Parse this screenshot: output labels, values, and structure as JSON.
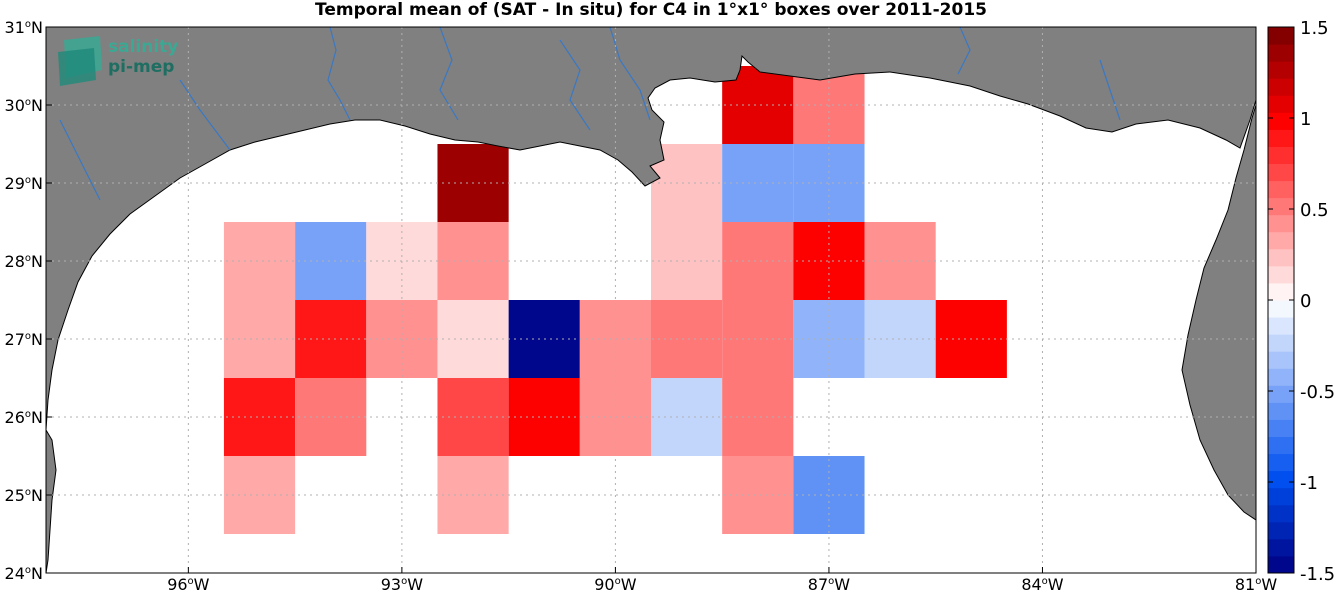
{
  "title": "Temporal mean of (SAT - In situ) for C4 in 1°x1° boxes over 2011-2015",
  "logo": {
    "line1": "salinity",
    "line2": "pi-mep"
  },
  "map": {
    "lon_range": [
      -98,
      -81
    ],
    "lat_range": [
      24,
      31
    ],
    "x_ticks": [
      {
        "lon": -96,
        "deg": "96",
        "hem": "W"
      },
      {
        "lon": -93,
        "deg": "93",
        "hem": "W"
      },
      {
        "lon": -90,
        "deg": "90",
        "hem": "W"
      },
      {
        "lon": -87,
        "deg": "87",
        "hem": "W"
      },
      {
        "lon": -84,
        "deg": "84",
        "hem": "W"
      },
      {
        "lon": -81,
        "deg": "81",
        "hem": "W"
      }
    ],
    "y_ticks": [
      {
        "lat": 24,
        "deg": "24",
        "hem": "N"
      },
      {
        "lat": 25,
        "deg": "25",
        "hem": "N"
      },
      {
        "lat": 26,
        "deg": "26",
        "hem": "N"
      },
      {
        "lat": 27,
        "deg": "27",
        "hem": "N"
      },
      {
        "lat": 28,
        "deg": "28",
        "hem": "N"
      },
      {
        "lat": 29,
        "deg": "29",
        "hem": "N"
      },
      {
        "lat": 30,
        "deg": "30",
        "hem": "N"
      },
      {
        "lat": 31,
        "deg": "31",
        "hem": "N"
      }
    ],
    "land_color": "#808080",
    "river_color": "#3a78c4"
  },
  "colorbar": {
    "range": [
      -1.5,
      1.5
    ],
    "levels": 32,
    "ticks": [
      "1.5",
      "1",
      "0.5",
      "0",
      "-0.5",
      "-1",
      "-1.5"
    ]
  },
  "cells": [
    {
      "lon": -95,
      "lat": 28,
      "v": 0.35
    },
    {
      "lon": -95,
      "lat": 27,
      "v": 0.35
    },
    {
      "lon": -95,
      "lat": 26,
      "v": 0.85
    },
    {
      "lon": -95,
      "lat": 25,
      "v": 0.35
    },
    {
      "lon": -94,
      "lat": 28,
      "v": -0.55
    },
    {
      "lon": -94,
      "lat": 27,
      "v": 0.85
    },
    {
      "lon": -94,
      "lat": 26,
      "v": 0.5
    },
    {
      "lon": -93,
      "lat": 28,
      "v": 0.15
    },
    {
      "lon": -93,
      "lat": 27,
      "v": 0.4
    },
    {
      "lon": -92,
      "lat": 29,
      "v": 1.35
    },
    {
      "lon": -92,
      "lat": 28,
      "v": 0.4
    },
    {
      "lon": -92,
      "lat": 27,
      "v": 0.12
    },
    {
      "lon": -92,
      "lat": 26,
      "v": 0.7
    },
    {
      "lon": -92,
      "lat": 25,
      "v": 0.35
    },
    {
      "lon": -91,
      "lat": 27,
      "v": -1.5
    },
    {
      "lon": -91,
      "lat": 26,
      "v": 0.95
    },
    {
      "lon": -90,
      "lat": 27,
      "v": 0.4
    },
    {
      "lon": -90,
      "lat": 26,
      "v": 0.4
    },
    {
      "lon": -89,
      "lat": 29,
      "v": 0.25
    },
    {
      "lon": -89,
      "lat": 28,
      "v": 0.25
    },
    {
      "lon": -89,
      "lat": 27,
      "v": 0.55
    },
    {
      "lon": -89,
      "lat": 26,
      "v": -0.25
    },
    {
      "lon": -88,
      "lat": 30,
      "v": 1.05
    },
    {
      "lon": -88,
      "lat": 29,
      "v": -0.5
    },
    {
      "lon": -88,
      "lat": 28,
      "v": 0.55
    },
    {
      "lon": -88,
      "lat": 27,
      "v": 0.55
    },
    {
      "lon": -88,
      "lat": 26,
      "v": 0.55
    },
    {
      "lon": -88,
      "lat": 25,
      "v": 0.4
    },
    {
      "lon": -87,
      "lat": 30,
      "v": 0.55
    },
    {
      "lon": -87,
      "lat": 29,
      "v": -0.5
    },
    {
      "lon": -87,
      "lat": 28,
      "v": 1.0
    },
    {
      "lon": -87,
      "lat": 27,
      "v": -0.4
    },
    {
      "lon": -87,
      "lat": 25,
      "v": -0.6
    },
    {
      "lon": -86,
      "lat": 28,
      "v": 0.4
    },
    {
      "lon": -86,
      "lat": 27,
      "v": -0.25
    },
    {
      "lon": -85,
      "lat": 27,
      "v": 0.95
    }
  ]
}
